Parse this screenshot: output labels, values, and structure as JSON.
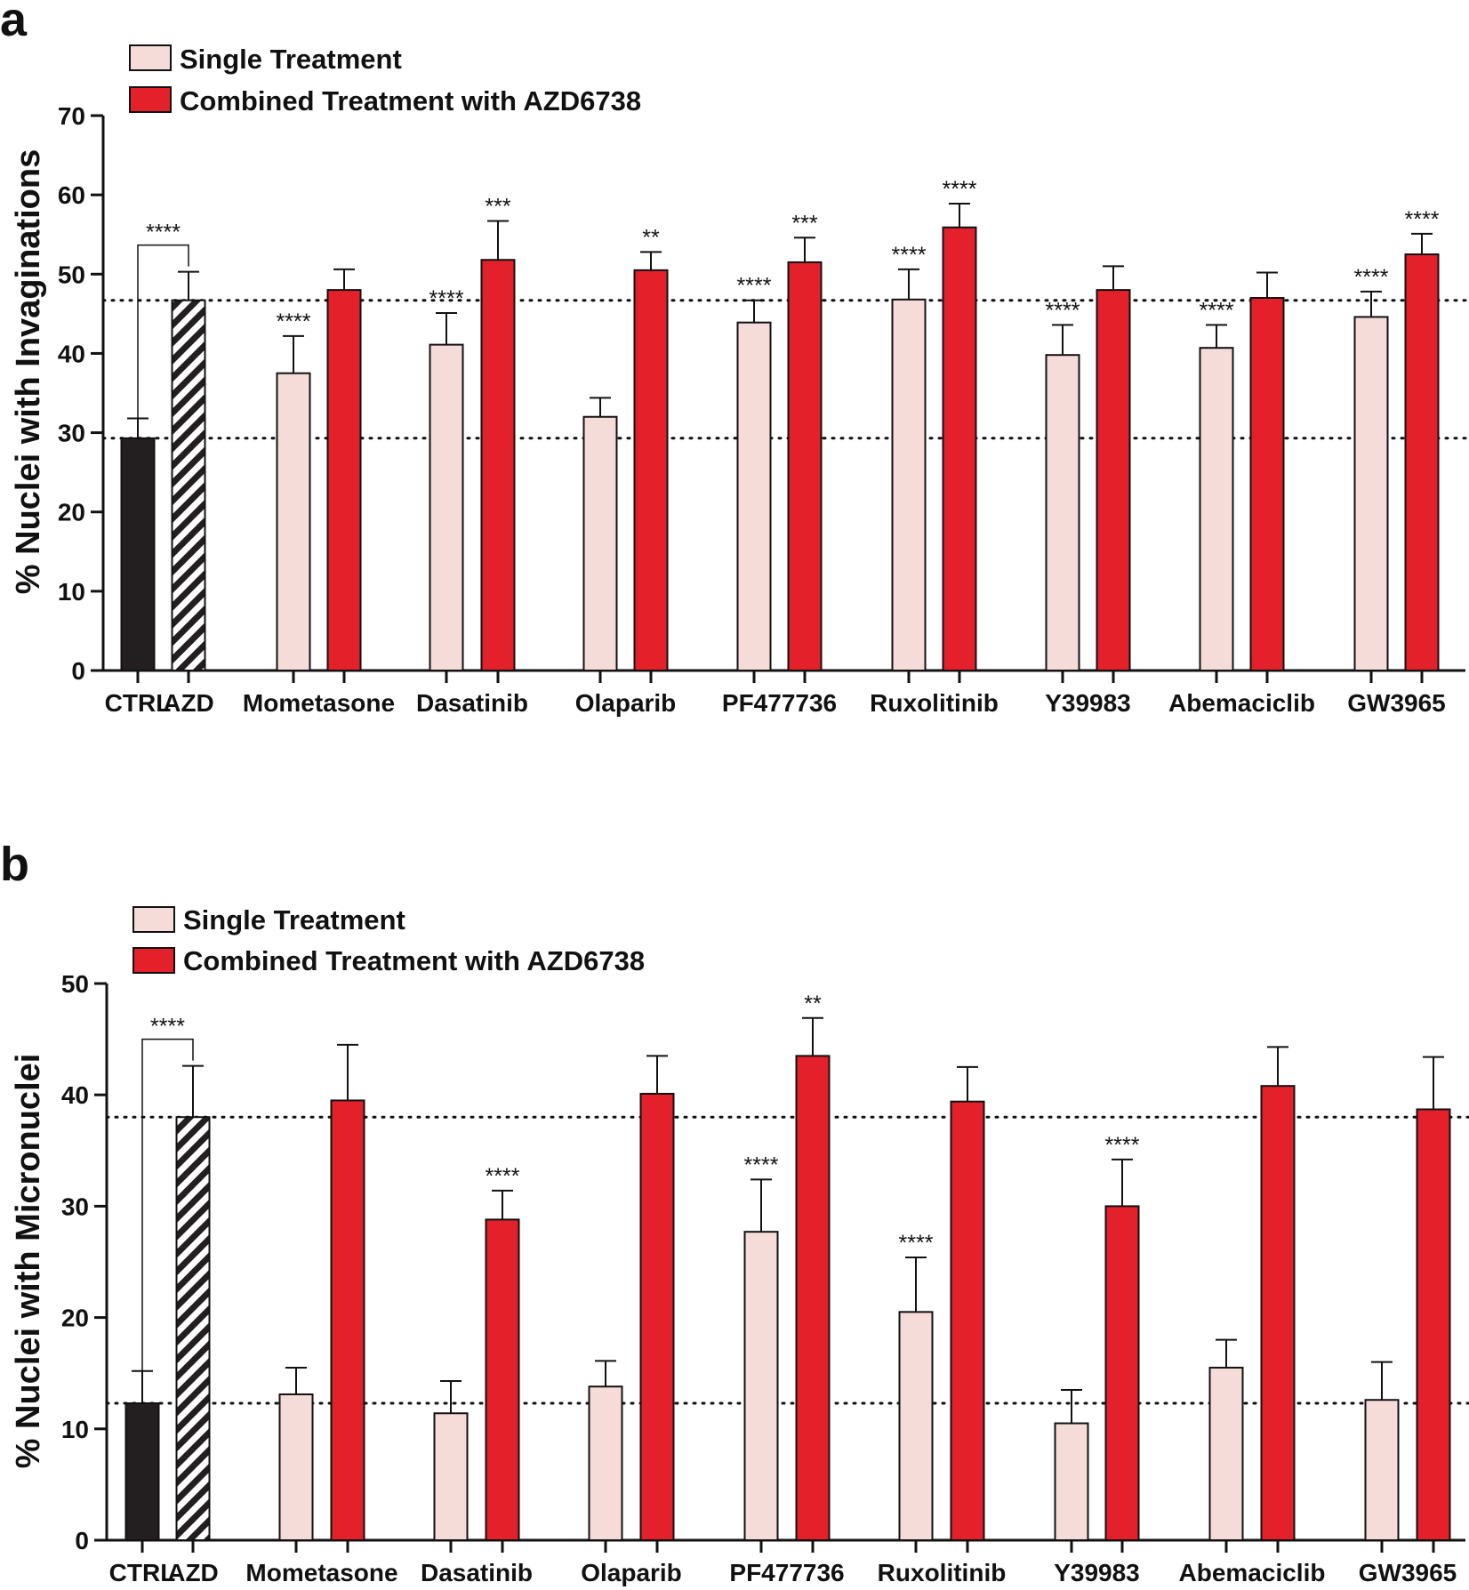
{
  "chart_data": [
    {
      "panel": "a",
      "type": "bar",
      "ylabel": "% Nuclei with Invaginations",
      "ylim": [
        0,
        70
      ],
      "yticks": [
        0,
        10,
        20,
        30,
        40,
        50,
        60,
        70
      ],
      "legend": {
        "placement": "top-left",
        "entries": [
          {
            "name": "Single Treatment",
            "color": "#f6dcd8"
          },
          {
            "name": "Combined Treatment with AZD6738",
            "color": "#e4202b"
          }
        ]
      },
      "reference_lines": [
        46.7,
        29.3
      ],
      "controls": [
        {
          "name": "CTRL",
          "value": 29.3,
          "err": 2.5,
          "style": "solid",
          "color": "#231f20"
        },
        {
          "name": "AZD",
          "value": 46.7,
          "err": 3.6,
          "style": "hatched",
          "color": "#231f20",
          "bracket_sig": "****"
        }
      ],
      "categories": [
        "Mometasone",
        "Dasatinib",
        "Olaparib",
        "PF477736",
        "Ruxolitinib",
        "Y39983",
        "Abemaciclib",
        "GW3965"
      ],
      "series": [
        {
          "name": "Single Treatment",
          "values": [
            37.5,
            41.1,
            32.0,
            43.9,
            46.8,
            39.8,
            40.7,
            44.6
          ],
          "errors": [
            4.7,
            4.0,
            2.4,
            2.8,
            3.8,
            3.8,
            2.9,
            3.2
          ],
          "sig": [
            "****",
            "****",
            "",
            "****",
            "****",
            "****",
            "****",
            "****"
          ]
        },
        {
          "name": "Combined Treatment with AZD6738",
          "values": [
            48.0,
            51.8,
            50.5,
            51.5,
            55.9,
            48.0,
            47.0,
            52.5
          ],
          "errors": [
            2.6,
            4.9,
            2.3,
            3.1,
            3.0,
            3.0,
            3.2,
            2.6
          ],
          "sig": [
            "",
            "***",
            "**",
            "***",
            "****",
            "",
            "",
            "****"
          ]
        }
      ]
    },
    {
      "panel": "b",
      "type": "bar",
      "ylabel": "% Nuclei with Micronuclei",
      "ylim": [
        0,
        50
      ],
      "yticks": [
        0,
        10,
        20,
        30,
        40,
        50
      ],
      "legend": {
        "placement": "top-left",
        "entries": [
          {
            "name": "Single Treatment",
            "color": "#f6dcd8"
          },
          {
            "name": "Combined Treatment with AZD6738",
            "color": "#e4202b"
          }
        ]
      },
      "reference_lines": [
        38.0,
        12.3
      ],
      "controls": [
        {
          "name": "CTRL",
          "value": 12.3,
          "err": 2.9,
          "style": "solid",
          "color": "#231f20"
        },
        {
          "name": "AZD",
          "value": 38.0,
          "err": 4.6,
          "style": "hatched",
          "color": "#231f20",
          "bracket_sig": "****"
        }
      ],
      "categories": [
        "Mometasone",
        "Dasatinib",
        "Olaparib",
        "PF477736",
        "Ruxolitinib",
        "Y39983",
        "Abemaciclib",
        "GW3965"
      ],
      "series": [
        {
          "name": "Single Treatment",
          "values": [
            13.1,
            11.4,
            13.8,
            27.7,
            20.5,
            10.5,
            15.5,
            12.6
          ],
          "errors": [
            2.4,
            2.9,
            2.3,
            4.7,
            4.9,
            3.0,
            2.5,
            3.4
          ],
          "sig": [
            "",
            "",
            "",
            "****",
            "****",
            "",
            "",
            ""
          ]
        },
        {
          "name": "Combined Treatment with AZD6738",
          "values": [
            39.5,
            28.8,
            40.1,
            43.5,
            39.4,
            30.0,
            40.8,
            38.7
          ],
          "errors": [
            5.0,
            2.6,
            3.4,
            3.4,
            3.1,
            4.2,
            3.5,
            4.7
          ],
          "sig": [
            "",
            "****",
            "",
            "**",
            "",
            "****",
            "",
            ""
          ]
        }
      ]
    }
  ]
}
